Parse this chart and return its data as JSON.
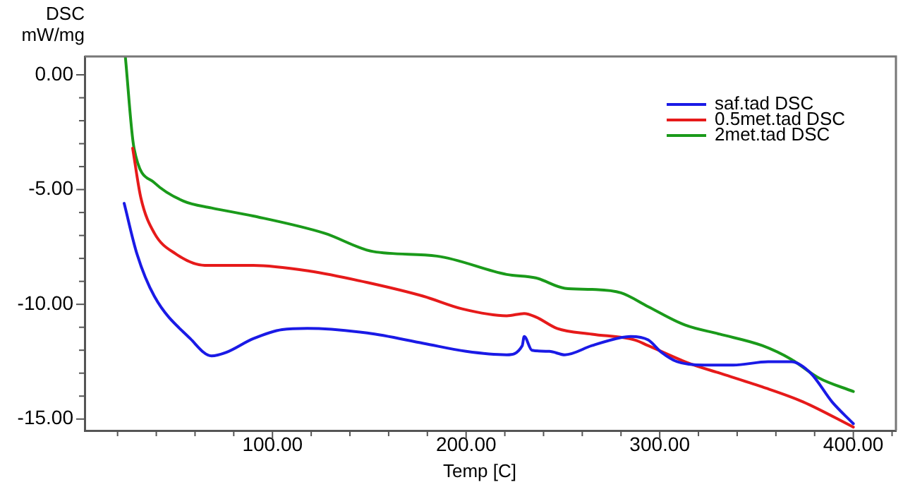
{
  "chart_data": {
    "type": "line",
    "xlabel": "Temp [C]",
    "ylabel": "DSC mW/mg",
    "xlim": [
      3,
      422
    ],
    "ylim": [
      -15.5,
      0.8
    ],
    "xticks": [
      {
        "value": 20,
        "label": null
      },
      {
        "value": 40,
        "label": null
      },
      {
        "value": 60,
        "label": null
      },
      {
        "value": 80,
        "label": null
      },
      {
        "value": 100,
        "label": "100.00"
      },
      {
        "value": 120,
        "label": null
      },
      {
        "value": 140,
        "label": null
      },
      {
        "value": 160,
        "label": null
      },
      {
        "value": 180,
        "label": null
      },
      {
        "value": 200,
        "label": "200.00"
      },
      {
        "value": 220,
        "label": null
      },
      {
        "value": 240,
        "label": null
      },
      {
        "value": 260,
        "label": null
      },
      {
        "value": 280,
        "label": null
      },
      {
        "value": 300,
        "label": "300.00"
      },
      {
        "value": 320,
        "label": null
      },
      {
        "value": 340,
        "label": null
      },
      {
        "value": 360,
        "label": null
      },
      {
        "value": 380,
        "label": null
      },
      {
        "value": 400,
        "label": "400.00"
      },
      {
        "value": 420,
        "label": null
      }
    ],
    "yticks": [
      {
        "value": -15,
        "label": "-15.00"
      },
      {
        "value": -14,
        "label": null
      },
      {
        "value": -13,
        "label": null
      },
      {
        "value": -12,
        "label": null
      },
      {
        "value": -11,
        "label": null
      },
      {
        "value": -10,
        "label": "-10.00"
      },
      {
        "value": -9,
        "label": null
      },
      {
        "value": -8,
        "label": null
      },
      {
        "value": -7,
        "label": null
      },
      {
        "value": -6,
        "label": null
      },
      {
        "value": -5,
        "label": "-5.00"
      },
      {
        "value": -4,
        "label": null
      },
      {
        "value": -3,
        "label": null
      },
      {
        "value": -2,
        "label": null
      },
      {
        "value": -1,
        "label": null
      },
      {
        "value": 0,
        "label": "0.00"
      }
    ],
    "grid": false,
    "legend": "top right",
    "marker": "none",
    "line_style": "solid",
    "series": [
      {
        "name": "saf.tad DSC",
        "color": "#1a1ae6",
        "x": [
          23.4,
          30,
          39,
          57.6,
          68.5,
          76,
          90,
          105,
          118,
          149,
          178,
          200,
          221,
          229,
          230,
          234,
          243,
          251,
          265,
          280,
          285,
          294,
          301,
          309,
          323,
          338,
          356,
          368,
          378,
          389,
          400
        ],
        "values": [
          -5.6,
          -7.8,
          -9.65,
          -11.5,
          -12.25,
          -12.1,
          -11.5,
          -11.1,
          -11.05,
          -11.25,
          -11.7,
          -12.05,
          -12.2,
          -11.8,
          -11.4,
          -12.0,
          -12.05,
          -12.2,
          -11.8,
          -11.45,
          -11.4,
          -11.55,
          -12.1,
          -12.5,
          -12.65,
          -12.65,
          -12.5,
          -12.5,
          -13.0,
          -14.25,
          -15.2
        ]
      },
      {
        "name": "0.5met.tad DSC",
        "color": "#e61a1a",
        "x": [
          27.8,
          32,
          39,
          50,
          65,
          90,
          119,
          149,
          178,
          198,
          221,
          230,
          236,
          247,
          265,
          287,
          294,
          316,
          331,
          353,
          374,
          400
        ],
        "values": [
          -3.2,
          -5.35,
          -6.9,
          -7.8,
          -8.3,
          -8.3,
          -8.55,
          -9.05,
          -9.65,
          -10.2,
          -10.5,
          -10.4,
          -10.55,
          -11.05,
          -11.3,
          -11.55,
          -11.8,
          -12.6,
          -13.0,
          -13.6,
          -14.25,
          -15.35
        ]
      },
      {
        "name": "2met.tad DSC",
        "color": "#1a9a1a",
        "x": [
          24,
          28.5,
          39,
          54,
          68.5,
          90,
          126.8,
          152,
          185,
          221,
          236,
          251,
          265,
          280,
          294,
          313,
          331,
          353,
          368,
          382,
          400
        ],
        "values": [
          0.8,
          -3.2,
          -4.7,
          -5.5,
          -5.8,
          -6.15,
          -6.9,
          -7.7,
          -7.9,
          -8.7,
          -8.85,
          -9.3,
          -9.35,
          -9.5,
          -10.1,
          -10.9,
          -11.3,
          -11.8,
          -12.4,
          -13.2,
          -13.8
        ]
      }
    ]
  }
}
